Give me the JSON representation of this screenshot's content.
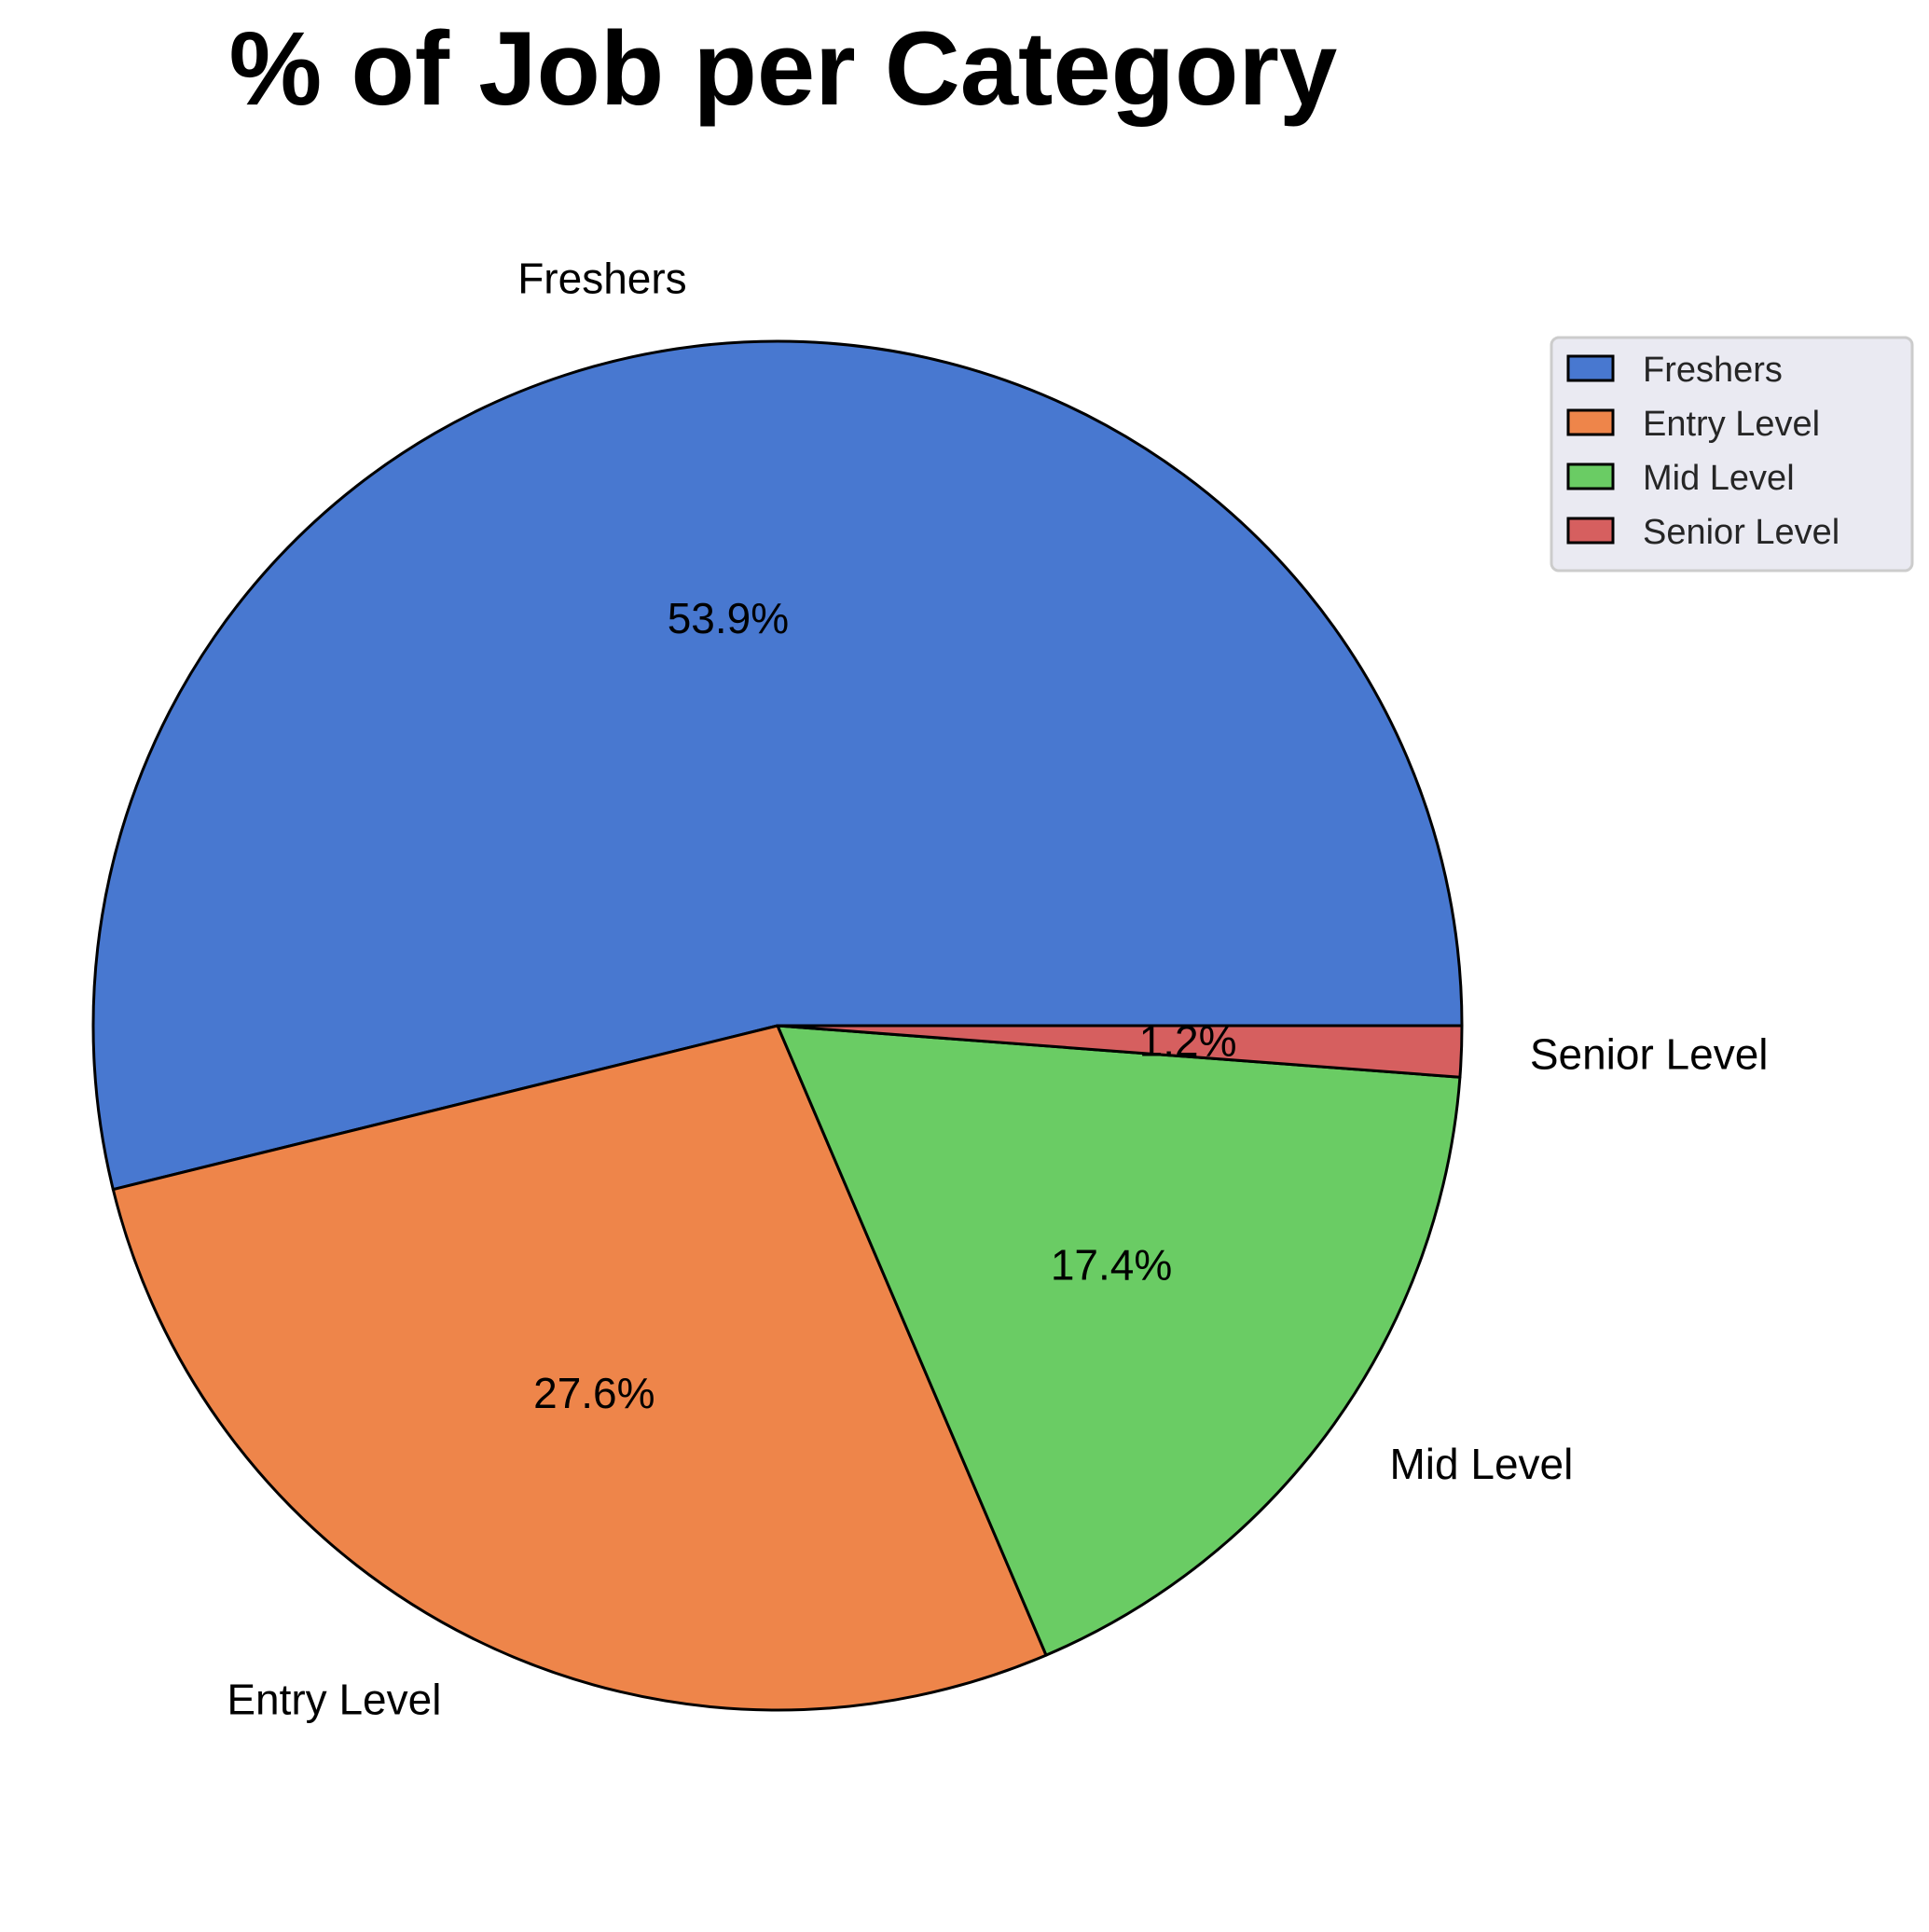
{
  "chart_data": {
    "type": "pie",
    "title": "% of Job per Category",
    "categories": [
      "Freshers",
      "Entry Level",
      "Mid Level",
      "Senior Level"
    ],
    "values": [
      53.9,
      27.6,
      17.4,
      1.2
    ],
    "value_labels": [
      "53.9%",
      "27.6%",
      "17.4%",
      "1.2%"
    ],
    "colors": [
      "#4878d0",
      "#ee854a",
      "#6acc64",
      "#d65f5f"
    ],
    "start_angle_deg": 0,
    "direction": "counterclockwise",
    "legend": {
      "placement": "upper-right",
      "entries": [
        "Freshers",
        "Entry Level",
        "Mid Level",
        "Senior Level"
      ],
      "background": "#eaeaf2"
    }
  }
}
